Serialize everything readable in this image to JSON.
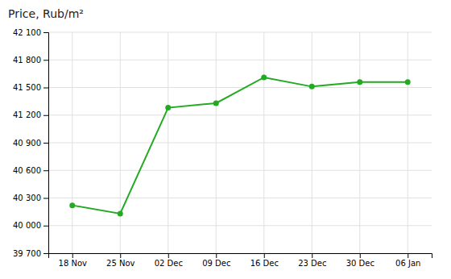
{
  "chart_data": {
    "type": "line",
    "title": "Price, Rub/m²",
    "categories": [
      "18 Nov",
      "25 Nov",
      "02 Dec",
      "09 Dec",
      "16 Dec",
      "23 Dec",
      "30 Dec",
      "06 Jan"
    ],
    "values": [
      40220,
      40130,
      41280,
      41330,
      41610,
      41510,
      41560,
      41560
    ],
    "color": "#22aa22",
    "marker": "circle",
    "ylim": [
      39700,
      42100
    ],
    "yticks": [
      {
        "value": 39700,
        "label": "39 700"
      },
      {
        "value": 40000,
        "label": "40 000"
      },
      {
        "value": 40300,
        "label": "40 300"
      },
      {
        "value": 40600,
        "label": "40 600"
      },
      {
        "value": 40900,
        "label": "40 900"
      },
      {
        "value": 41200,
        "label": "41 200"
      },
      {
        "value": 41500,
        "label": "41 500"
      },
      {
        "value": 41800,
        "label": "41 800"
      },
      {
        "value": 42100,
        "label": "42 100"
      }
    ],
    "grid": true
  }
}
